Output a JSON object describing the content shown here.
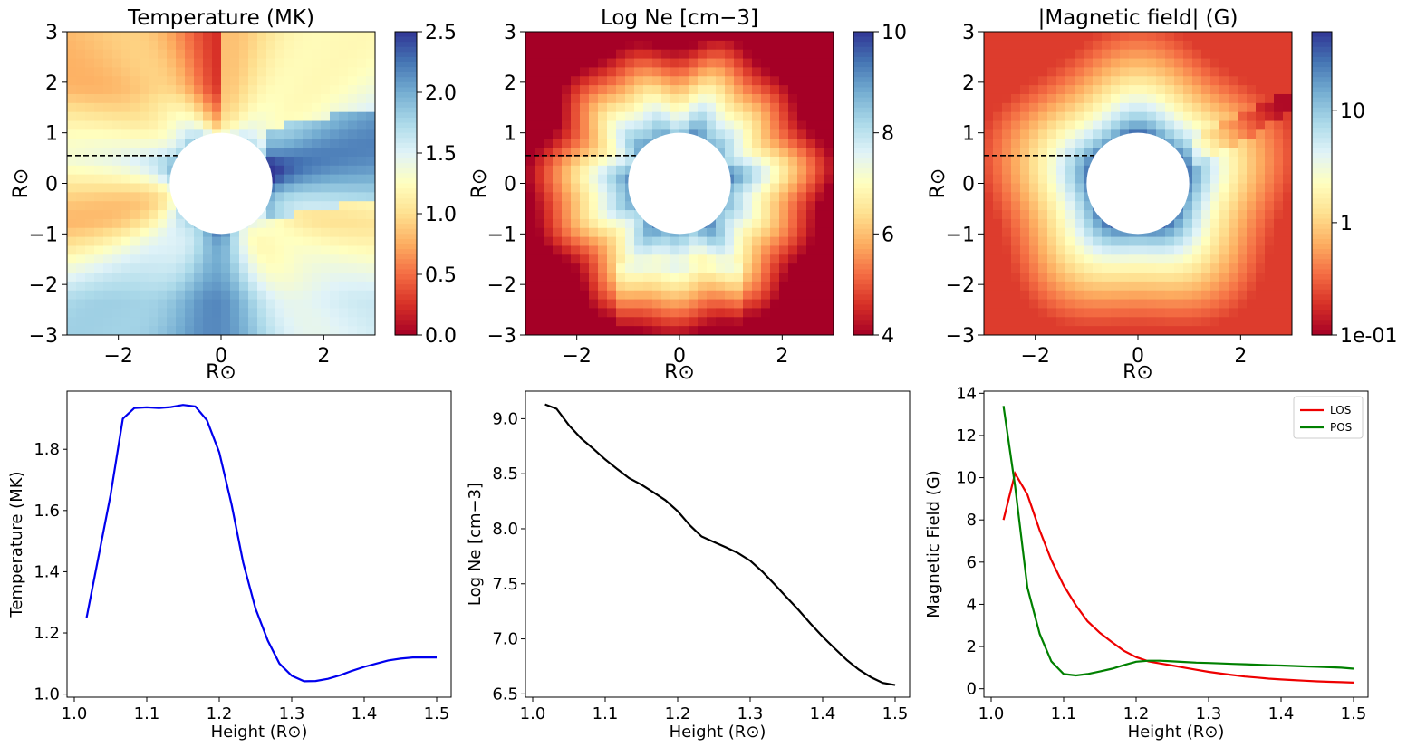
{
  "chart_data": [
    {
      "type": "heatmap",
      "title": "Temperature (MK)",
      "xlabel": "R⊙",
      "ylabel": "R⊙",
      "xlim": [
        -3,
        3
      ],
      "ylim": [
        -3,
        3
      ],
      "xticks": [
        -2,
        0,
        2
      ],
      "yticks": [
        -3,
        -2,
        -1,
        0,
        1,
        2,
        3
      ],
      "xtick_labels": [
        "−2",
        "0",
        "2"
      ],
      "ytick_labels": [
        "−3",
        "−2",
        "−1",
        "0",
        "1",
        "2",
        "3"
      ],
      "colorbar": {
        "range": [
          0,
          2.5
        ],
        "scale": "linear",
        "ticks": [
          0,
          0.5,
          1.0,
          1.5,
          2.0,
          2.5
        ],
        "tick_labels": [
          "0.0",
          "0.5",
          "1.0",
          "1.5",
          "2.0",
          "2.5"
        ],
        "colormap": "RdYlBu"
      },
      "occulter_radius": 1.0,
      "cut_line": {
        "y": 0.55,
        "x": [
          -3.0,
          -0.85
        ]
      }
    },
    {
      "type": "heatmap",
      "title": "Log Ne [cm−3]",
      "xlabel": "R⊙",
      "ylabel": "R⊙",
      "xlim": [
        -3,
        3
      ],
      "ylim": [
        -3,
        3
      ],
      "xticks": [
        -2,
        0,
        2
      ],
      "yticks": [
        -3,
        -2,
        -1,
        0,
        1,
        2,
        3
      ],
      "xtick_labels": [
        "−2",
        "0",
        "2"
      ],
      "ytick_labels": [
        "−3",
        "−2",
        "−1",
        "0",
        "1",
        "2",
        "3"
      ],
      "colorbar": {
        "range": [
          4,
          10
        ],
        "scale": "linear",
        "ticks": [
          4,
          6,
          8,
          10
        ],
        "tick_labels": [
          "4",
          "6",
          "8",
          "10"
        ],
        "colormap": "RdYlBu"
      },
      "occulter_radius": 1.0,
      "cut_line": {
        "y": 0.55,
        "x": [
          -3.0,
          -0.85
        ]
      }
    },
    {
      "type": "heatmap",
      "title": "|Magnetic field| (G)",
      "xlabel": "R⊙",
      "ylabel": "R⊙",
      "xlim": [
        -3,
        3
      ],
      "ylim": [
        -3,
        3
      ],
      "xticks": [
        -2,
        0,
        2
      ],
      "yticks": [
        -3,
        -2,
        -1,
        0,
        1,
        2,
        3
      ],
      "xtick_labels": [
        "−2",
        "0",
        "2"
      ],
      "ytick_labels": [
        "−3",
        "−2",
        "−1",
        "0",
        "1",
        "2",
        "3"
      ],
      "colorbar": {
        "range": [
          0.1,
          50
        ],
        "scale": "log",
        "ticks": [
          0.1,
          1,
          10
        ],
        "tick_labels": [
          "1e-01",
          "1",
          "10"
        ],
        "colormap": "RdYlBu"
      },
      "occulter_radius": 1.0,
      "cut_line": {
        "y": 0.55,
        "x": [
          -3.0,
          -0.85
        ]
      }
    },
    {
      "type": "line",
      "xlabel": "Height (R⊙)",
      "ylabel": "Temperature (MK)",
      "xlim": [
        0.99,
        1.52
      ],
      "ylim": [
        0.99,
        1.99
      ],
      "xticks": [
        1.0,
        1.1,
        1.2,
        1.3,
        1.4,
        1.5
      ],
      "yticks": [
        1.0,
        1.2,
        1.4,
        1.6,
        1.8
      ],
      "xtick_labels": [
        "1.0",
        "1.1",
        "1.2",
        "1.3",
        "1.4",
        "1.5"
      ],
      "ytick_labels": [
        "1.0",
        "1.2",
        "1.4",
        "1.6",
        "1.8"
      ],
      "series": [
        {
          "color": "#0000ee",
          "x": [
            1.017,
            1.05,
            1.067,
            1.083,
            1.1,
            1.117,
            1.133,
            1.15,
            1.167,
            1.183,
            1.2,
            1.217,
            1.233,
            1.25,
            1.267,
            1.283,
            1.3,
            1.317,
            1.333,
            1.35,
            1.367,
            1.383,
            1.4,
            1.417,
            1.433,
            1.45,
            1.467,
            1.483,
            1.5
          ],
          "y": [
            1.25,
            1.65,
            1.9,
            1.935,
            1.937,
            1.935,
            1.938,
            1.945,
            1.94,
            1.895,
            1.79,
            1.62,
            1.43,
            1.28,
            1.175,
            1.1,
            1.06,
            1.042,
            1.043,
            1.05,
            1.062,
            1.076,
            1.089,
            1.1,
            1.11,
            1.116,
            1.12,
            1.12,
            1.12
          ]
        }
      ]
    },
    {
      "type": "line",
      "xlabel": "Height (R⊙)",
      "ylabel": "Log Ne [cm−3]",
      "xlim": [
        0.99,
        1.52
      ],
      "ylim": [
        6.47,
        9.25
      ],
      "xticks": [
        1.0,
        1.1,
        1.2,
        1.3,
        1.4,
        1.5
      ],
      "yticks": [
        6.5,
        7.0,
        7.5,
        8.0,
        8.5,
        9.0
      ],
      "xtick_labels": [
        "1.0",
        "1.1",
        "1.2",
        "1.3",
        "1.4",
        "1.5"
      ],
      "ytick_labels": [
        "6.5",
        "7.0",
        "7.5",
        "8.0",
        "8.5",
        "9.0"
      ],
      "series": [
        {
          "color": "#000000",
          "x": [
            1.017,
            1.033,
            1.05,
            1.067,
            1.083,
            1.1,
            1.117,
            1.133,
            1.15,
            1.167,
            1.183,
            1.2,
            1.217,
            1.233,
            1.25,
            1.267,
            1.283,
            1.3,
            1.317,
            1.333,
            1.35,
            1.367,
            1.383,
            1.4,
            1.417,
            1.433,
            1.45,
            1.467,
            1.483,
            1.5
          ],
          "y": [
            9.13,
            9.09,
            8.94,
            8.82,
            8.73,
            8.63,
            8.54,
            8.46,
            8.4,
            8.33,
            8.26,
            8.16,
            8.03,
            7.93,
            7.88,
            7.83,
            7.78,
            7.71,
            7.61,
            7.5,
            7.38,
            7.26,
            7.14,
            7.02,
            6.91,
            6.81,
            6.72,
            6.65,
            6.6,
            6.58
          ]
        }
      ]
    },
    {
      "type": "line",
      "xlabel": "Height (R⊙)",
      "ylabel": "Magnetic Field (G)",
      "xlim": [
        0.99,
        1.52
      ],
      "ylim": [
        -0.4,
        14.1
      ],
      "xticks": [
        1.0,
        1.1,
        1.2,
        1.3,
        1.4,
        1.5
      ],
      "yticks": [
        0,
        2,
        4,
        6,
        8,
        10,
        12,
        14
      ],
      "xtick_labels": [
        "1.0",
        "1.1",
        "1.2",
        "1.3",
        "1.4",
        "1.5"
      ],
      "ytick_labels": [
        "0",
        "2",
        "4",
        "6",
        "8",
        "10",
        "12",
        "14"
      ],
      "legend": "top-right",
      "series": [
        {
          "name": "LOS",
          "color": "#ee0000",
          "x": [
            1.017,
            1.033,
            1.05,
            1.067,
            1.083,
            1.1,
            1.117,
            1.133,
            1.15,
            1.167,
            1.183,
            1.2,
            1.217,
            1.233,
            1.25,
            1.267,
            1.283,
            1.3,
            1.317,
            1.333,
            1.35,
            1.367,
            1.383,
            1.4,
            1.417,
            1.433,
            1.45,
            1.467,
            1.483,
            1.5
          ],
          "y": [
            8.0,
            10.2,
            9.2,
            7.5,
            6.1,
            4.9,
            3.95,
            3.2,
            2.65,
            2.2,
            1.8,
            1.5,
            1.3,
            1.2,
            1.1,
            1.0,
            0.9,
            0.8,
            0.72,
            0.65,
            0.58,
            0.53,
            0.48,
            0.44,
            0.41,
            0.38,
            0.35,
            0.33,
            0.31,
            0.29
          ]
        },
        {
          "name": "POS",
          "color": "#008000",
          "x": [
            1.017,
            1.033,
            1.05,
            1.067,
            1.083,
            1.1,
            1.117,
            1.133,
            1.15,
            1.167,
            1.183,
            1.2,
            1.217,
            1.233,
            1.25,
            1.267,
            1.283,
            1.3,
            1.317,
            1.333,
            1.35,
            1.367,
            1.383,
            1.4,
            1.417,
            1.433,
            1.45,
            1.467,
            1.483,
            1.5
          ],
          "y": [
            13.4,
            9.6,
            4.8,
            2.6,
            1.3,
            0.7,
            0.63,
            0.7,
            0.82,
            0.95,
            1.12,
            1.28,
            1.33,
            1.33,
            1.3,
            1.27,
            1.24,
            1.22,
            1.2,
            1.18,
            1.16,
            1.14,
            1.12,
            1.1,
            1.08,
            1.06,
            1.04,
            1.02,
            1.0,
            0.95
          ]
        }
      ]
    }
  ]
}
